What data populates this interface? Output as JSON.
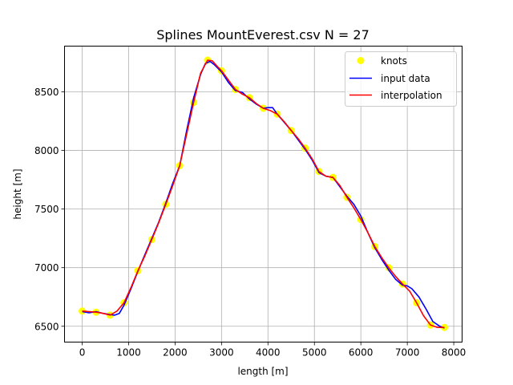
{
  "chart_data": {
    "type": "line",
    "title": "Splines MountEverest.csv N = 27",
    "xlabel": "length [m]",
    "ylabel": "height [m]",
    "xlim": [
      -380,
      8180
    ],
    "ylim": [
      6365,
      8890
    ],
    "xticks": [
      0,
      1000,
      2000,
      3000,
      4000,
      5000,
      6000,
      7000,
      8000
    ],
    "yticks": [
      6500,
      7000,
      7500,
      8000,
      8500
    ],
    "grid": true,
    "legend_position": "top-right",
    "series": [
      {
        "name": "knots",
        "kind": "scatter",
        "color": "#ffff00",
        "x": [
          0,
          300,
          600,
          900,
          1200,
          1500,
          1800,
          2100,
          2400,
          2700,
          3000,
          3300,
          3600,
          3900,
          4200,
          4500,
          4800,
          5100,
          5400,
          5700,
          6000,
          6300,
          6600,
          6900,
          7200,
          7500,
          7800
        ],
        "y": [
          6630,
          6620,
          6595,
          6700,
          6975,
          7240,
          7540,
          7870,
          8410,
          8770,
          8680,
          8520,
          8450,
          8360,
          8310,
          8170,
          8020,
          7820,
          7770,
          7600,
          7410,
          7180,
          7000,
          6860,
          6700,
          6510,
          6490
        ]
      },
      {
        "name": "input data",
        "kind": "line",
        "color": "#0000ff",
        "x": [
          0,
          150,
          300,
          450,
          600,
          700,
          800,
          900,
          1050,
          1200,
          1350,
          1500,
          1650,
          1800,
          1950,
          2100,
          2250,
          2400,
          2550,
          2650,
          2750,
          2850,
          3000,
          3150,
          3300,
          3450,
          3600,
          3750,
          3900,
          4000,
          4100,
          4200,
          4350,
          4500,
          4650,
          4800,
          4950,
          5100,
          5250,
          5400,
          5550,
          5700,
          5850,
          6000,
          6150,
          6300,
          6450,
          6600,
          6750,
          6900,
          7000,
          7100,
          7250,
          7400,
          7550,
          7700,
          7800
        ],
        "y": [
          6625,
          6615,
          6625,
          6610,
          6600,
          6595,
          6610,
          6680,
          6820,
          6970,
          7110,
          7250,
          7390,
          7550,
          7720,
          7870,
          8170,
          8450,
          8650,
          8740,
          8760,
          8730,
          8670,
          8580,
          8510,
          8495,
          8440,
          8395,
          8360,
          8365,
          8365,
          8310,
          8240,
          8170,
          8090,
          8010,
          7920,
          7810,
          7780,
          7770,
          7690,
          7610,
          7540,
          7440,
          7300,
          7170,
          7070,
          6980,
          6900,
          6850,
          6845,
          6820,
          6750,
          6650,
          6540,
          6500,
          6485
        ]
      },
      {
        "name": "interpolation",
        "kind": "line",
        "color": "#ff0000",
        "x": [
          0,
          150,
          300,
          450,
          600,
          750,
          900,
          1050,
          1200,
          1350,
          1500,
          1650,
          1800,
          1950,
          2100,
          2250,
          2400,
          2550,
          2700,
          2800,
          2900,
          3000,
          3150,
          3300,
          3450,
          3600,
          3750,
          3900,
          4050,
          4200,
          4350,
          4500,
          4650,
          4800,
          4950,
          5100,
          5250,
          5400,
          5550,
          5700,
          5850,
          6000,
          6150,
          6300,
          6450,
          6600,
          6750,
          6900,
          7050,
          7200,
          7350,
          7500,
          7650,
          7800
        ],
        "y": [
          6630,
          6625,
          6620,
          6610,
          6595,
          6630,
          6700,
          6830,
          6975,
          7100,
          7240,
          7385,
          7540,
          7700,
          7870,
          8140,
          8410,
          8660,
          8770,
          8765,
          8720,
          8680,
          8600,
          8520,
          8480,
          8450,
          8400,
          8360,
          8340,
          8310,
          8245,
          8170,
          8100,
          8020,
          7930,
          7820,
          7780,
          7770,
          7700,
          7600,
          7510,
          7410,
          7300,
          7180,
          7085,
          7000,
          6925,
          6860,
          6800,
          6700,
          6590,
          6510,
          6490,
          6490
        ]
      }
    ]
  }
}
